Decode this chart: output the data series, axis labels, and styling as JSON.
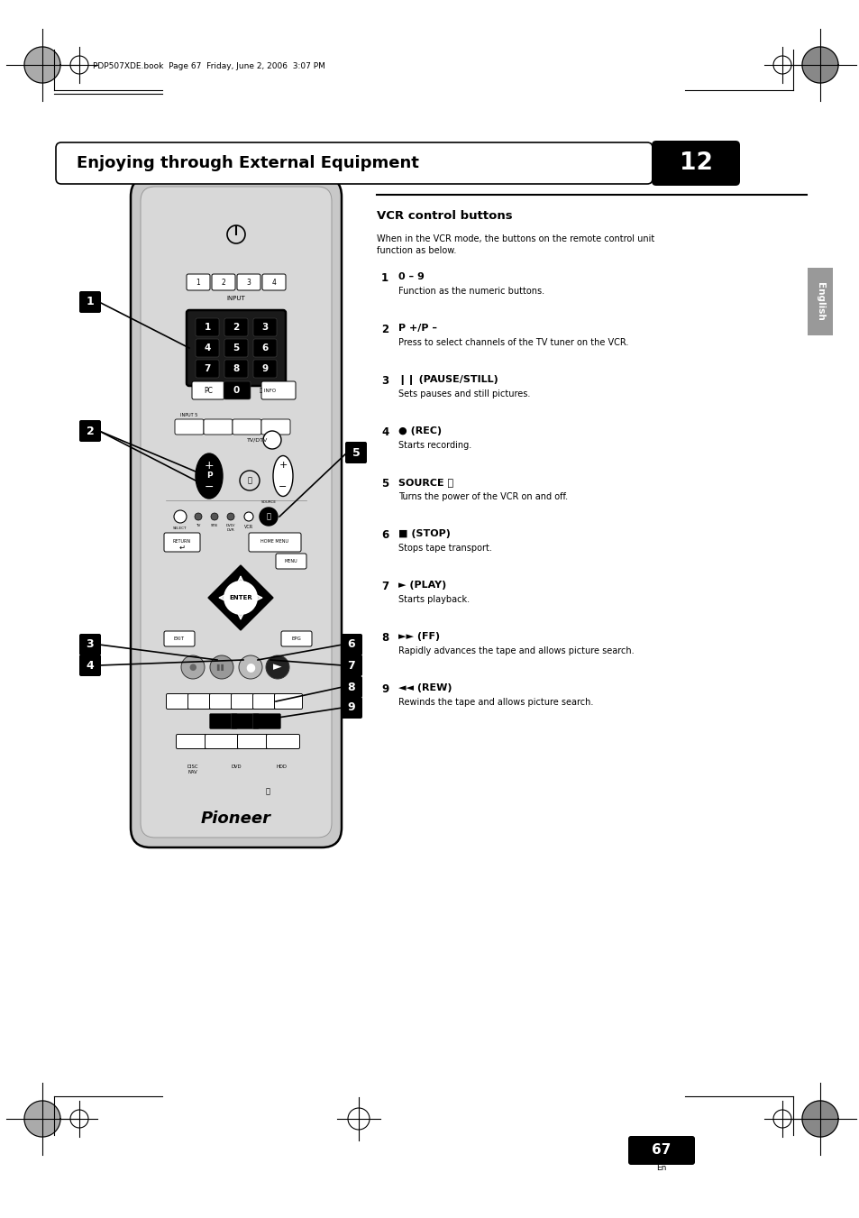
{
  "page_title": "Enjoying through External Equipment",
  "chapter_num": "12",
  "header_text": "PDP507XDE.book  Page 67  Friday, June 2, 2006  3:07 PM",
  "section_title": "VCR control buttons",
  "section_intro": "When in the VCR mode, the buttons on the remote control unit\nfunction as below.",
  "items": [
    {
      "num": "1",
      "label": "0 – 9",
      "desc": "Function as the numeric buttons."
    },
    {
      "num": "2",
      "label": "P +/P –",
      "desc": "Press to select channels of the TV tuner on the VCR."
    },
    {
      "num": "3",
      "label": "❙❙ (PAUSE/STILL)",
      "desc": "Sets pauses and still pictures."
    },
    {
      "num": "4",
      "label": "● (REC)",
      "desc": "Starts recording."
    },
    {
      "num": "5",
      "label": "SOURCE ⏻",
      "desc": "Turns the power of the VCR on and off."
    },
    {
      "num": "6",
      "label": "■ (STOP)",
      "desc": "Stops tape transport."
    },
    {
      "num": "7",
      "label": "► (PLAY)",
      "desc": "Starts playback."
    },
    {
      "num": "8",
      "label": "►► (FF)",
      "desc": "Rapidly advances the tape and allows picture search."
    },
    {
      "num": "9",
      "label": "◄◄ (REW)",
      "desc": "Rewinds the tape and allows picture search."
    }
  ],
  "page_num": "67",
  "side_label": "English",
  "bg_color": "#ffffff",
  "remote_color": "#d0d0d0"
}
